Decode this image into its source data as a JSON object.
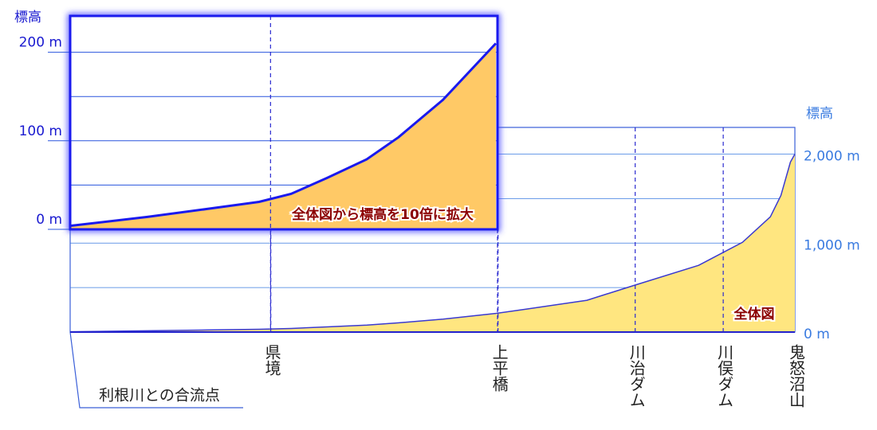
{
  "chart_data": {
    "type": "area",
    "label": "全体図",
    "y_label": "標高",
    "origin_label": "利根川との合流点",
    "x": [
      0,
      18.9,
      33.5,
      46.2,
      54,
      62.8,
      72.5,
      80.3,
      91.1,
      104.1,
      111.5,
      126.2,
      137.9,
      153.5,
      164.2,
      171,
      173.6,
      175.9,
      177
    ],
    "values": [
      4,
      14,
      23,
      31,
      40,
      58,
      79,
      104,
      146,
      210,
      259,
      357,
      527,
      750,
      1009,
      1295,
      1536,
      1911,
      2000
    ],
    "xlim": [
      0,
      177
    ],
    "ylim": [
      0,
      2300
    ],
    "yticks": [
      {
        "value": 0,
        "label": "0 m"
      },
      {
        "value": 1000,
        "label": "1,000 m"
      },
      {
        "value": 2000,
        "label": "2,000 m"
      }
    ],
    "minor_yticks": [
      500,
      1500
    ],
    "color": "#ffe680",
    "line_color": "#3a3ad0",
    "markers": [
      {
        "x": 49,
        "label": "県境"
      },
      {
        "x": 104.5,
        "label": "上平橋"
      },
      {
        "x": 138,
        "label": "川治ダム"
      },
      {
        "x": 159.5,
        "label": "川俣ダム"
      },
      {
        "x": 177,
        "label": "鬼怒沼山"
      }
    ],
    "inset": {
      "label": "全体図から標高を10倍に拡大",
      "y_label": "標高",
      "xlim": [
        0,
        104.5
      ],
      "ylim": [
        0,
        241
      ],
      "yticks": [
        {
          "value": 0,
          "label": "0 m"
        },
        {
          "value": 100,
          "label": "100 m"
        },
        {
          "value": 200,
          "label": "200 m"
        }
      ],
      "minor_yticks": [
        50,
        150
      ],
      "color": "#ffc966",
      "line_color": "#1a1aee"
    }
  }
}
